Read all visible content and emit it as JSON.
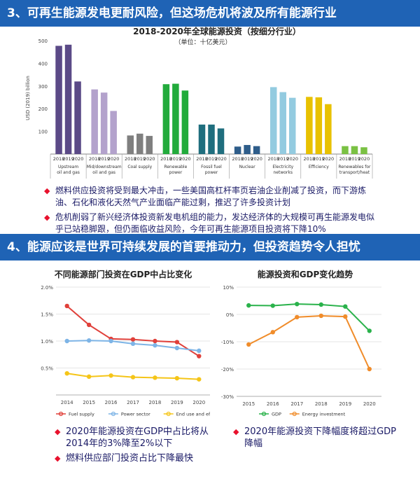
{
  "section3": {
    "title": "3、可再生能源发电更耐风险，但这场危机将波及所有能源行业"
  },
  "section4": {
    "title": "4、能源应该是世界可持续发展的首要推动力，但投资趋势令人担忧"
  },
  "colors": {
    "banner": "#1f63b5",
    "bullet": "#e8112d",
    "text": "#1a1a66",
    "upstream": "#5b4a87",
    "midstream": "#b3a2cc",
    "coal": "#7f7f7f",
    "renewable": "#22ab3c",
    "fossil": "#1f6e7e",
    "nuclear": "#2e5d8a",
    "electricity": "#93cbe0",
    "efficiency": "#e8c100",
    "transport": "#7ac143",
    "fuel_supply": "#e0403a",
    "power_sector": "#7db4e6",
    "end_use": "#f5c518",
    "gdp": "#2ab24b",
    "energy_investment": "#f08c2a"
  },
  "chart_data": [
    {
      "type": "bar",
      "title": "2018-2020年全球能源投资（按细分行业）",
      "subtitle": "（单位：十亿美元）",
      "ylabel": "USD (2019) billion",
      "ylim": [
        0,
        500
      ],
      "yticks": [
        100,
        200,
        300,
        400,
        500
      ],
      "year_labels": [
        "2018",
        "2019",
        "2020"
      ],
      "groups": [
        {
          "name": "Upstream oil and gas",
          "label_lines": [
            "Upstream",
            "oil and gas"
          ],
          "values": [
            477,
            482,
            320
          ],
          "color_key": "upstream"
        },
        {
          "name": "Mid/downstream oil and gas",
          "label_lines": [
            "Mid/downstream",
            "oil and gas"
          ],
          "values": [
            285,
            271,
            190
          ],
          "color_key": "midstream"
        },
        {
          "name": "Coal supply",
          "label_lines": [
            "Coal supply"
          ],
          "values": [
            82,
            90,
            80
          ],
          "color_key": "coal"
        },
        {
          "name": "Renewable power",
          "label_lines": [
            "Renewable",
            "power"
          ],
          "values": [
            308,
            310,
            280
          ],
          "color_key": "renewable"
        },
        {
          "name": "Fossil fuel power",
          "label_lines": [
            "Fossil fuel",
            "power"
          ],
          "values": [
            130,
            130,
            113
          ],
          "color_key": "fossil"
        },
        {
          "name": "Nuclear",
          "label_lines": [
            "Nuclear"
          ],
          "values": [
            33,
            40,
            35
          ],
          "color_key": "nuclear"
        },
        {
          "name": "Electricity networks",
          "label_lines": [
            "Electricity",
            "networks"
          ],
          "values": [
            295,
            273,
            248
          ],
          "color_key": "electricity"
        },
        {
          "name": "Efficiency",
          "label_lines": [
            "Efficiency"
          ],
          "values": [
            252,
            250,
            220
          ],
          "color_key": "efficiency"
        },
        {
          "name": "Renewables for transport/heat",
          "label_lines": [
            "Renewables for",
            "transport/heat"
          ],
          "values": [
            35,
            35,
            30
          ],
          "color_key": "transport"
        }
      ]
    },
    {
      "type": "line",
      "title": "不同能源部门投资在GDP中占比变化",
      "x": [
        "2014",
        "2015",
        "2016",
        "2017",
        "2018",
        "2019",
        "2020"
      ],
      "ylim": [
        0,
        2.0
      ],
      "yticks": [
        0.5,
        1.0,
        1.5,
        2.0
      ],
      "ytick_labels": [
        "0.5%",
        "1.0%",
        "1.5%",
        "2.0%"
      ],
      "series": [
        {
          "name": "Fuel supply",
          "values": [
            1.65,
            1.3,
            1.04,
            1.03,
            1.0,
            0.98,
            0.72
          ],
          "color_key": "fuel_supply"
        },
        {
          "name": "Power sector",
          "values": [
            1.0,
            1.01,
            1.0,
            0.95,
            0.92,
            0.87,
            0.82
          ],
          "color_key": "power_sector"
        },
        {
          "name": "End use and efficiency",
          "values": [
            0.4,
            0.34,
            0.36,
            0.33,
            0.32,
            0.31,
            0.29
          ],
          "color_key": "end_use"
        }
      ],
      "legend": "bottom"
    },
    {
      "type": "line",
      "title": "能源投资和GDP变化趋势",
      "x": [
        "2015",
        "2016",
        "2017",
        "2018",
        "2019",
        "2020"
      ],
      "ylim": [
        -30,
        10
      ],
      "yticks": [
        -30,
        -20,
        -10,
        0,
        10
      ],
      "ytick_labels": [
        "-30%",
        "-20%",
        "-10%",
        "0%",
        "10%"
      ],
      "series": [
        {
          "name": "GDP",
          "values": [
            3.3,
            3.2,
            3.8,
            3.6,
            2.9,
            -6.0
          ],
          "color_key": "gdp"
        },
        {
          "name": "Energy investment",
          "values": [
            -11,
            -6.5,
            -1,
            -0.5,
            -0.8,
            -20
          ],
          "color_key": "energy_investment"
        }
      ],
      "legend": "bottom"
    }
  ],
  "bullets_top": [
    "燃料供应投资将受到最大冲击，一些美国高杠杆率页岩油企业削减了投资，而下游炼油、石化和液化天然气产业面临产能过剩，推迟了许多投资计划",
    "危机削弱了新兴经济体投资新发电机组的能力，发达经济体的大规模可再生能源发电似乎已站稳脚跟，但仍面临收益风险，今年可再生能源项目投资将下降10%"
  ],
  "bullets_left": [
    "2020年能源投资在GDP中占比将从2014年的3%降至2%以下",
    "燃料供应部门投资占比下降最快"
  ],
  "bullets_right": [
    "2020年能源投资下降幅度将超过GDP降幅"
  ]
}
